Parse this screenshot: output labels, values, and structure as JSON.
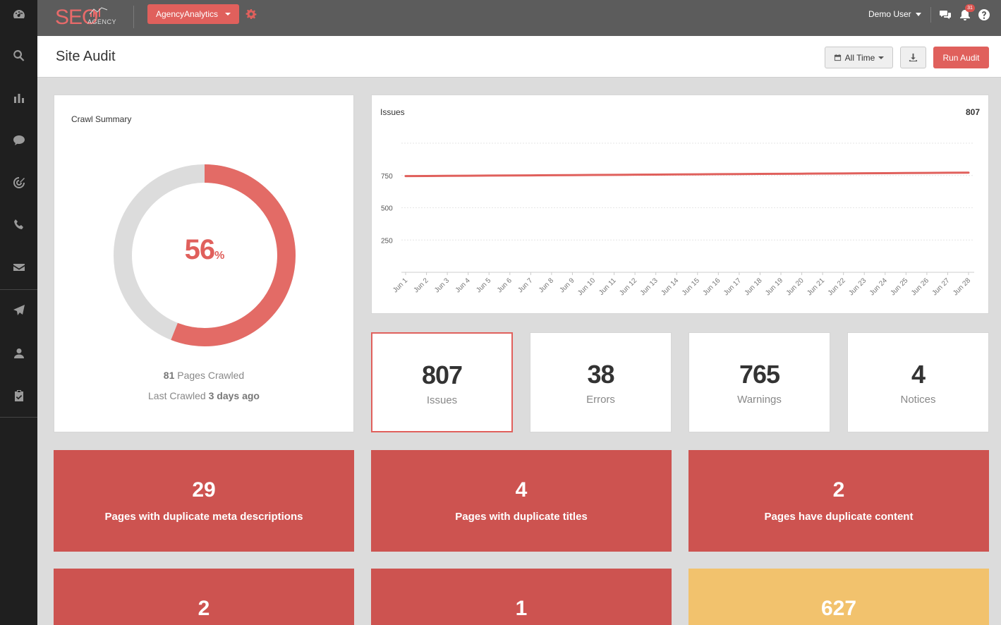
{
  "brand": {
    "logo_text": "SEO",
    "logo_sub": "AGENCY",
    "accent": "#e0605c"
  },
  "topbar": {
    "client_label": "AgencyAnalytics",
    "user_label": "Demo User",
    "notification_count": "31"
  },
  "sidebar": {
    "items": [
      "dashboard-icon",
      "search-icon",
      "bar-chart-icon",
      "chat-bubble-icon",
      "target-icon",
      "phone-icon",
      "envelope-icon",
      "paper-plane-icon",
      "user-icon",
      "clipboard-check-icon"
    ]
  },
  "header": {
    "title": "Site Audit",
    "time_range_label": "All Time",
    "run_audit_label": "Run Audit"
  },
  "crawl_summary": {
    "title": "Crawl Summary",
    "percent_value": "56",
    "percent_sign": "%",
    "pages_crawled_count": "81",
    "pages_crawled_label": " Pages Crawled",
    "last_crawled_prefix": "Last Crawled ",
    "last_crawled_value": "3 days ago",
    "percent_fraction": 0.56
  },
  "chart_data": {
    "type": "line",
    "title": "Issues",
    "total_label": "807",
    "x": [
      "Jun 1",
      "Jun 2",
      "Jun 3",
      "Jun 4",
      "Jun 5",
      "Jun 6",
      "Jun 7",
      "Jun 8",
      "Jun 9",
      "Jun 10",
      "Jun 11",
      "Jun 12",
      "Jun 13",
      "Jun 14",
      "Jun 15",
      "Jun 16",
      "Jun 17",
      "Jun 18",
      "Jun 19",
      "Jun 20",
      "Jun 21",
      "Jun 22",
      "Jun 23",
      "Jun 24",
      "Jun 25",
      "Jun 26",
      "Jun 27",
      "Jun 28"
    ],
    "series": [
      {
        "values": [
          745,
          746,
          747,
          748,
          749,
          750,
          751,
          752,
          753,
          754,
          755,
          756,
          757,
          758,
          759,
          760,
          761,
          762,
          763,
          764,
          765,
          766,
          767,
          768,
          769,
          770,
          771,
          772
        ],
        "color": "#e0605c"
      }
    ],
    "yticks": [
      250,
      500,
      750
    ],
    "ylim": [
      0,
      1000
    ],
    "grid": true
  },
  "stats": [
    {
      "value": "807",
      "label": "Issues"
    },
    {
      "value": "38",
      "label": "Errors"
    },
    {
      "value": "765",
      "label": "Warnings"
    },
    {
      "value": "4",
      "label": "Notices"
    }
  ],
  "tiles": [
    {
      "value": "29",
      "label": "Pages with duplicate meta descriptions",
      "color": "#cd5350"
    },
    {
      "value": "4",
      "label": "Pages with duplicate titles",
      "color": "#cd5350"
    },
    {
      "value": "2",
      "label": "Pages have duplicate content",
      "color": "#cd5350"
    },
    {
      "value": "2",
      "label": "",
      "color": "#cd5350"
    },
    {
      "value": "1",
      "label": "",
      "color": "#cd5350"
    },
    {
      "value": "627",
      "label": "",
      "color": "#f2c26d"
    }
  ]
}
